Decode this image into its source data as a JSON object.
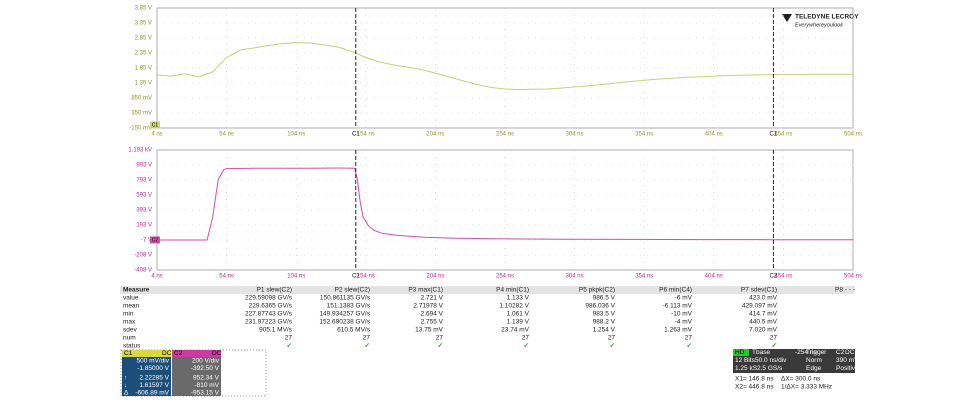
{
  "logo": {
    "brand": "TELEDYNE LECROY",
    "tagline": "Everywhereyoulook"
  },
  "chart_data": [
    {
      "type": "line",
      "color": "#c9cf7a",
      "label_color": "#8f9428",
      "grid": true,
      "xlim": [
        4,
        504
      ],
      "xticks": [
        {
          "value": 4,
          "label": "4 ns"
        },
        {
          "value": 54,
          "label": "54 ns"
        },
        {
          "value": 104,
          "label": "104 ns"
        },
        {
          "value": 154,
          "label": "154 ns"
        },
        {
          "value": 204,
          "label": "204 ns"
        },
        {
          "value": 254,
          "label": "254 ns"
        },
        {
          "value": 304,
          "label": "304 ns"
        },
        {
          "value": 354,
          "label": "354 ns"
        },
        {
          "value": 404,
          "label": "404 ns"
        },
        {
          "value": 454,
          "label": "454 ns"
        },
        {
          "value": 504,
          "label": "504 ns"
        }
      ],
      "ylim": [
        -0.15,
        3.85
      ],
      "yticks": [
        {
          "value": 3.85,
          "label": "3.85 V"
        },
        {
          "value": 3.35,
          "label": "3.35 V"
        },
        {
          "value": 2.85,
          "label": "2.85 V"
        },
        {
          "value": 2.35,
          "label": "2.35 V"
        },
        {
          "value": 1.85,
          "label": "1.85 V"
        },
        {
          "value": 1.35,
          "label": "1.35 V"
        },
        {
          "value": 0.85,
          "label": "850 mV"
        },
        {
          "value": 0.35,
          "label": "350 mV"
        },
        {
          "value": -0.15,
          "label": "-150 mV"
        }
      ],
      "cursors": [
        {
          "value": 146.8,
          "label": "C1"
        },
        {
          "value": 446.8,
          "label": "C1"
        }
      ],
      "x": [
        4,
        14,
        24,
        34,
        44,
        54,
        64,
        74,
        84,
        94,
        104,
        114,
        124,
        134,
        144,
        154,
        164,
        174,
        184,
        194,
        204,
        214,
        224,
        234,
        244,
        254,
        264,
        274,
        284,
        294,
        304,
        314,
        324,
        334,
        344,
        354,
        364,
        374,
        384,
        394,
        404,
        414,
        424,
        434,
        444,
        454,
        464,
        474,
        484,
        494,
        504
      ],
      "series": [
        {
          "name": "C1",
          "color": "#c9cf7a",
          "values": [
            1.62,
            1.58,
            1.66,
            1.55,
            1.72,
            2.2,
            2.45,
            2.52,
            2.6,
            2.66,
            2.7,
            2.68,
            2.62,
            2.55,
            2.4,
            2.2,
            2.05,
            1.95,
            1.88,
            1.8,
            1.68,
            1.55,
            1.42,
            1.3,
            1.2,
            1.15,
            1.13,
            1.14,
            1.15,
            1.18,
            1.22,
            1.26,
            1.3,
            1.35,
            1.4,
            1.44,
            1.48,
            1.51,
            1.54,
            1.56,
            1.58,
            1.6,
            1.61,
            1.62,
            1.63,
            1.63,
            1.63,
            1.64,
            1.64,
            1.64,
            1.64
          ]
        }
      ]
    },
    {
      "type": "line",
      "color": "#d050a8",
      "label_color": "#c02890",
      "grid": true,
      "xlim": [
        4,
        504
      ],
      "xticks": [
        {
          "value": 4,
          "label": "4 ns"
        },
        {
          "value": 54,
          "label": "54 ns"
        },
        {
          "value": 104,
          "label": "104 ns"
        },
        {
          "value": 154,
          "label": "154 ns"
        },
        {
          "value": 204,
          "label": "204 ns"
        },
        {
          "value": 254,
          "label": "254 ns"
        },
        {
          "value": 304,
          "label": "304 ns"
        },
        {
          "value": 354,
          "label": "354 ns"
        },
        {
          "value": 404,
          "label": "404 ns"
        },
        {
          "value": 454,
          "label": "454 ns"
        },
        {
          "value": 504,
          "label": "504 ns"
        }
      ],
      "ylim": [
        -407.5,
        1192.5
      ],
      "yticks": [
        {
          "value": 1192.5,
          "label": "1.193 kV"
        },
        {
          "value": 992.5,
          "label": "993 V"
        },
        {
          "value": 792.5,
          "label": "793 V"
        },
        {
          "value": 592.5,
          "label": "593 V"
        },
        {
          "value": 392.5,
          "label": "393 V"
        },
        {
          "value": 192.5,
          "label": "193 V"
        },
        {
          "value": -7.5,
          "label": "-7 V"
        },
        {
          "value": -207.5,
          "label": "-208 V"
        },
        {
          "value": -407.5,
          "label": "-408 V"
        }
      ],
      "cursors": [
        {
          "value": 146.8,
          "label": "C2"
        },
        {
          "value": 446.8,
          "label": "C2"
        }
      ],
      "x": [
        4,
        14,
        24,
        34,
        40,
        44,
        48,
        52,
        54,
        74,
        94,
        114,
        134,
        146,
        148,
        150,
        152,
        156,
        160,
        166,
        176,
        196,
        216,
        246,
        296,
        346,
        396,
        446,
        504
      ],
      "series": [
        {
          "name": "C2",
          "color": "#d050a8",
          "values": [
            -7,
            -7,
            -7,
            -7,
            -7,
            300,
            800,
            930,
            945,
            948,
            950,
            950,
            952,
            950,
            800,
            500,
            300,
            180,
            120,
            80,
            55,
            30,
            18,
            8,
            2,
            0,
            -2,
            -3,
            -4
          ]
        }
      ]
    }
  ],
  "measurements": {
    "header": [
      "Measure",
      "P1 slew(C2)",
      "P2 slew(C2)",
      "P3 max(C1)",
      "P4 min(C1)",
      "P5 pkpk(C2)",
      "P6 min(C4)",
      "P7 sdev(C1)",
      "P8 - - -"
    ],
    "rows": [
      [
        "value",
        "229.59098 GV/s",
        "150.861135 GV/s",
        "2.721 V",
        "1.133 V",
        "986.5 V",
        "-6 mV",
        "423.0 mV"
      ],
      [
        "mean",
        "229.6365 GV/s",
        "151.1383 GV/s",
        "2.71978 V",
        "1.10282 V",
        "986.036 V",
        "-6.113 mV",
        "429.097 mV"
      ],
      [
        "min",
        "227.87743 GV/s",
        "149.934257 GV/s",
        "2.694 V",
        "1.061 V",
        "983.5 V",
        "-10 mV",
        "414.7 mV"
      ],
      [
        "max",
        "231.97223 GV/s",
        "152.690238 GV/s",
        "2.755 V",
        "1.139 V",
        "988.2 V",
        "-4 mV",
        "440.5 mV"
      ],
      [
        "sdev",
        "905.1 MV/s",
        "610.5 MV/s",
        "13.75 mV",
        "23.74 mV",
        "1.254 V",
        "1.263 mV",
        "7.020 mV"
      ],
      [
        "num",
        "27",
        "27",
        "27",
        "27",
        "27",
        "27",
        "27"
      ],
      [
        "status",
        "✓",
        "✓",
        "✓",
        "✓",
        "✓",
        "✓",
        "✓"
      ]
    ]
  },
  "channels": {
    "markers": [
      "↑",
      "↓",
      "Δ"
    ],
    "list": [
      {
        "label": "C1",
        "coupling": "DC",
        "rows": [
          "500 mV/div",
          "-1.85000 V",
          "2.22285 V",
          "1.61597 V",
          "-606.89 mV"
        ]
      },
      {
        "label": "C2",
        "coupling": "DC",
        "rows": [
          "200 V/div",
          "-392.50 V",
          "952.34 V",
          "-810 mV",
          "-953.15 V"
        ]
      }
    ]
  },
  "timebase": {
    "rows": [
      [
        "HD",
        "Tbase",
        "-254 ns",
        "Trigger",
        "C2",
        "DC"
      ],
      [
        "12 Bits",
        "50.0 ns/div",
        "Norm",
        "390 mV"
      ],
      [
        "1.25 kS",
        "2.5 GS/s",
        "Edge",
        "Positive"
      ]
    ]
  },
  "readout": [
    [
      "X1= 146.8 ns",
      "ΔX= 300.0 ns"
    ],
    [
      "X2= 446.8 ns",
      "1/ΔX= 3.333 MHz"
    ]
  ]
}
